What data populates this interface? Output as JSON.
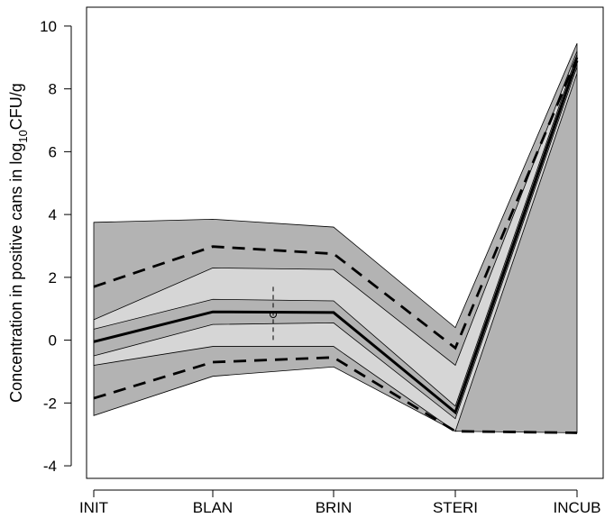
{
  "chart_data": {
    "type": "area",
    "title": "",
    "xlabel": "",
    "ylabel": {
      "prefix": "Concentration in positive cans in log",
      "subscript": "10",
      "suffix": "CFU/g"
    },
    "categories": [
      "INIT",
      "BLAN",
      "BRIN",
      "STERI",
      "INCUB"
    ],
    "ylim": [
      -4.4,
      10.6
    ],
    "yticks": [
      -4,
      -2,
      0,
      2,
      4,
      6,
      8,
      10
    ],
    "grid": false,
    "legend": "none",
    "bands": [
      {
        "name": "",
        "color": "#b3b3b3",
        "upper": [
          3.75,
          3.85,
          3.6,
          0.4,
          9.45
        ],
        "lower": [
          -2.4,
          -1.15,
          -0.85,
          -2.9,
          -2.95
        ]
      },
      {
        "name": "",
        "color": "#d6d6d6",
        "upper": [
          0.65,
          2.3,
          2.25,
          -0.8,
          9.2
        ],
        "lower": [
          -0.8,
          -0.2,
          -0.2,
          -2.9,
          8.5
        ]
      },
      {
        "name": "",
        "color": "#b3b3b3",
        "upper": [
          0.35,
          1.3,
          1.25,
          -2.1,
          9.1
        ],
        "lower": [
          -0.5,
          0.5,
          0.55,
          -2.5,
          8.7
        ]
      }
    ],
    "series": [
      {
        "name": "",
        "style": "solid",
        "values": [
          -0.05,
          0.9,
          0.88,
          -2.3,
          8.9
        ]
      },
      {
        "name": "",
        "style": "dashed",
        "values": [
          1.7,
          2.98,
          2.75,
          -0.25,
          9.0
        ]
      },
      {
        "name": "",
        "style": "dashed",
        "values": [
          -1.85,
          -0.7,
          -0.55,
          -2.9,
          -2.95
        ]
      }
    ],
    "observation": {
      "x": 1.5,
      "y": 0.82,
      "err_low": -0.1,
      "err_high": 1.7
    }
  }
}
